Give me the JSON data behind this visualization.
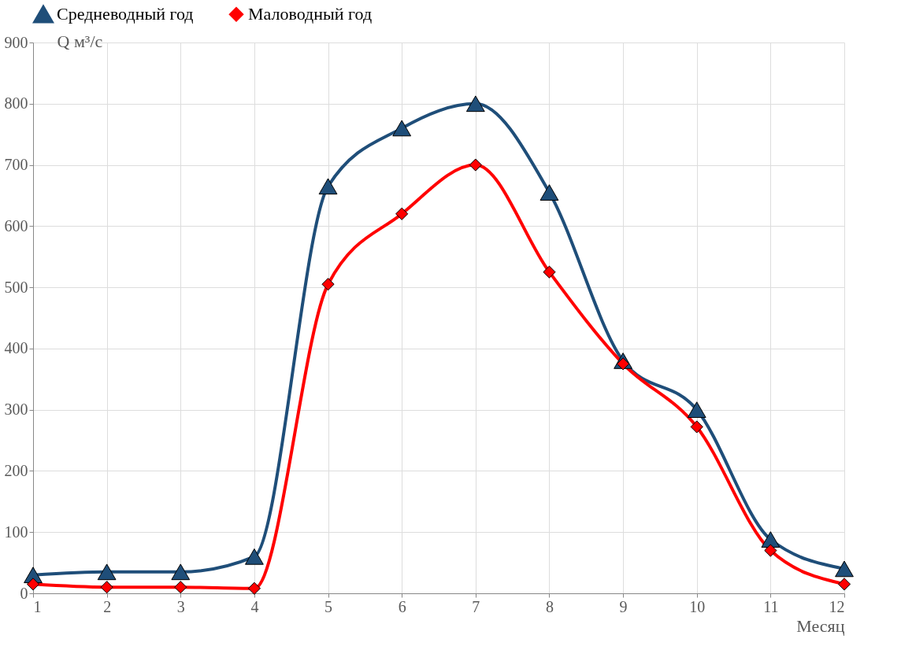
{
  "chart_data": {
    "type": "line",
    "xlabel": "Месяц",
    "ylabel": "Q м³/с",
    "x": [
      1,
      2,
      3,
      4,
      5,
      6,
      7,
      8,
      9,
      10,
      11,
      12
    ],
    "xlim": [
      1,
      12
    ],
    "xticks": [
      1,
      2,
      3,
      4,
      5,
      6,
      7,
      8,
      9,
      10,
      11,
      12
    ],
    "ylim": [
      0,
      900
    ],
    "yticks": [
      0,
      100,
      200,
      300,
      400,
      500,
      600,
      700,
      800,
      900
    ],
    "grid": true,
    "legend": "top",
    "line_style": "solid",
    "series": [
      {
        "name": "Средневодный год",
        "color": "#1f4e79",
        "marker": "triangle",
        "values": [
          30,
          35,
          35,
          60,
          665,
          760,
          800,
          655,
          380,
          300,
          88,
          40
        ]
      },
      {
        "name": "Маловодный год",
        "color": "#ff0000",
        "marker": "diamond",
        "values": [
          15,
          10,
          10,
          8,
          505,
          620,
          700,
          525,
          375,
          272,
          70,
          15
        ]
      }
    ]
  }
}
